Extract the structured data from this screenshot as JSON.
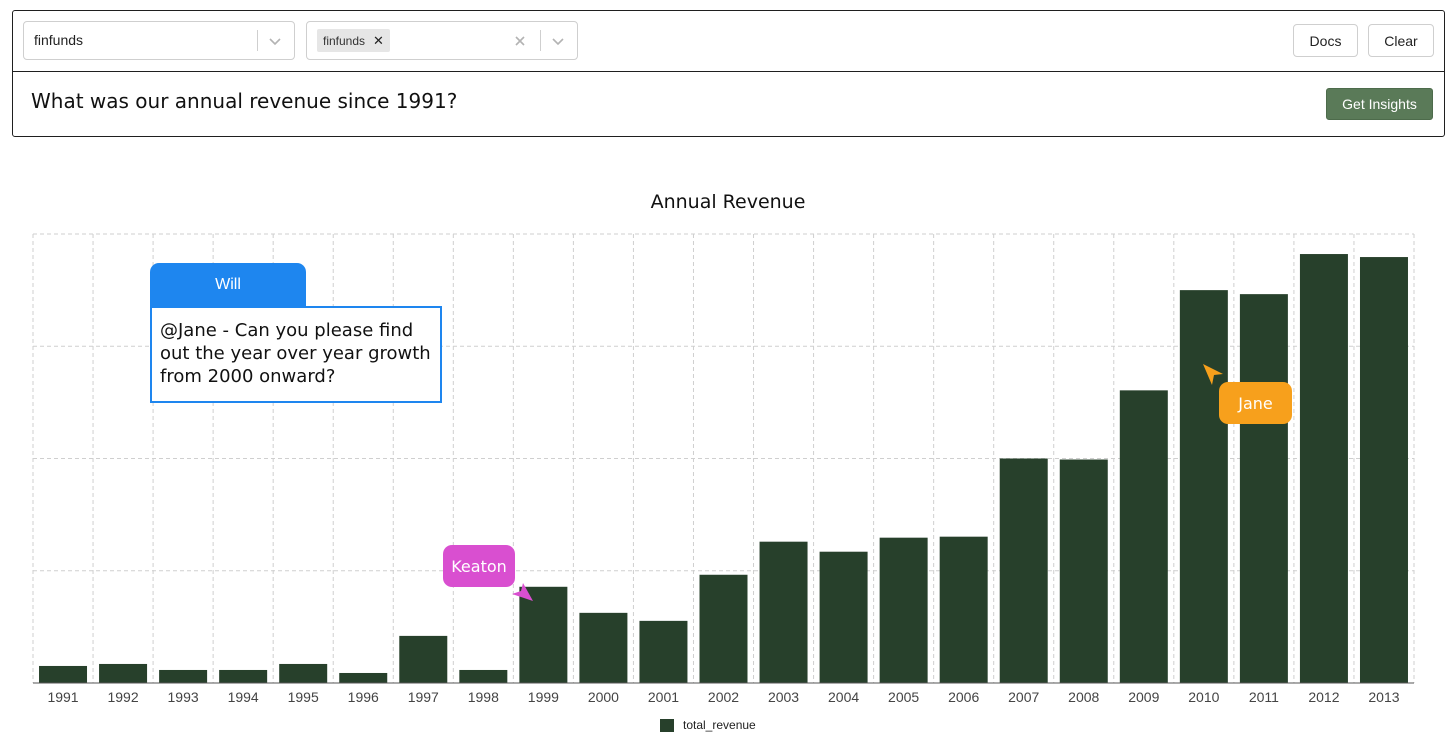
{
  "toolbar": {
    "database_select": {
      "value": "finfunds"
    },
    "table_select": {
      "chip": "finfunds"
    },
    "docs_label": "Docs",
    "clear_label": "Clear"
  },
  "query": {
    "question": "What was our annual revenue since 1991?",
    "insights_label": "Get Insights"
  },
  "comments": {
    "will": {
      "author": "Will",
      "text": "@Jane - Can you please find out the year over year growth from 2000 onward?",
      "color": "#1e86ef"
    },
    "keaton": {
      "name": "Keaton",
      "color": "#d94fd0"
    },
    "jane": {
      "name": "Jane",
      "color": "#f7a01c"
    }
  },
  "chart_data": {
    "type": "bar",
    "title": "Annual Revenue",
    "categories": [
      "1991",
      "1992",
      "1993",
      "1994",
      "1995",
      "1996",
      "1997",
      "1998",
      "1999",
      "2000",
      "2001",
      "2002",
      "2003",
      "2004",
      "2005",
      "2006",
      "2007",
      "2008",
      "2009",
      "2010",
      "2011",
      "2012",
      "2013"
    ],
    "series": [
      {
        "name": "total_revenue",
        "color": "#27402b",
        "values": [
          17,
          19,
          13,
          13,
          19,
          10,
          47,
          13,
          96,
          70,
          62,
          108,
          141,
          131,
          145,
          146,
          224,
          223,
          292,
          392,
          388,
          428,
          425
        ]
      }
    ],
    "ylim": [
      0,
      448
    ],
    "y_gridlines": [
      0,
      112,
      224,
      336,
      448
    ],
    "y_tick_labels_shown": false,
    "xlabel": "",
    "ylabel": "",
    "grid": true,
    "legend_position": "bottom-center"
  }
}
